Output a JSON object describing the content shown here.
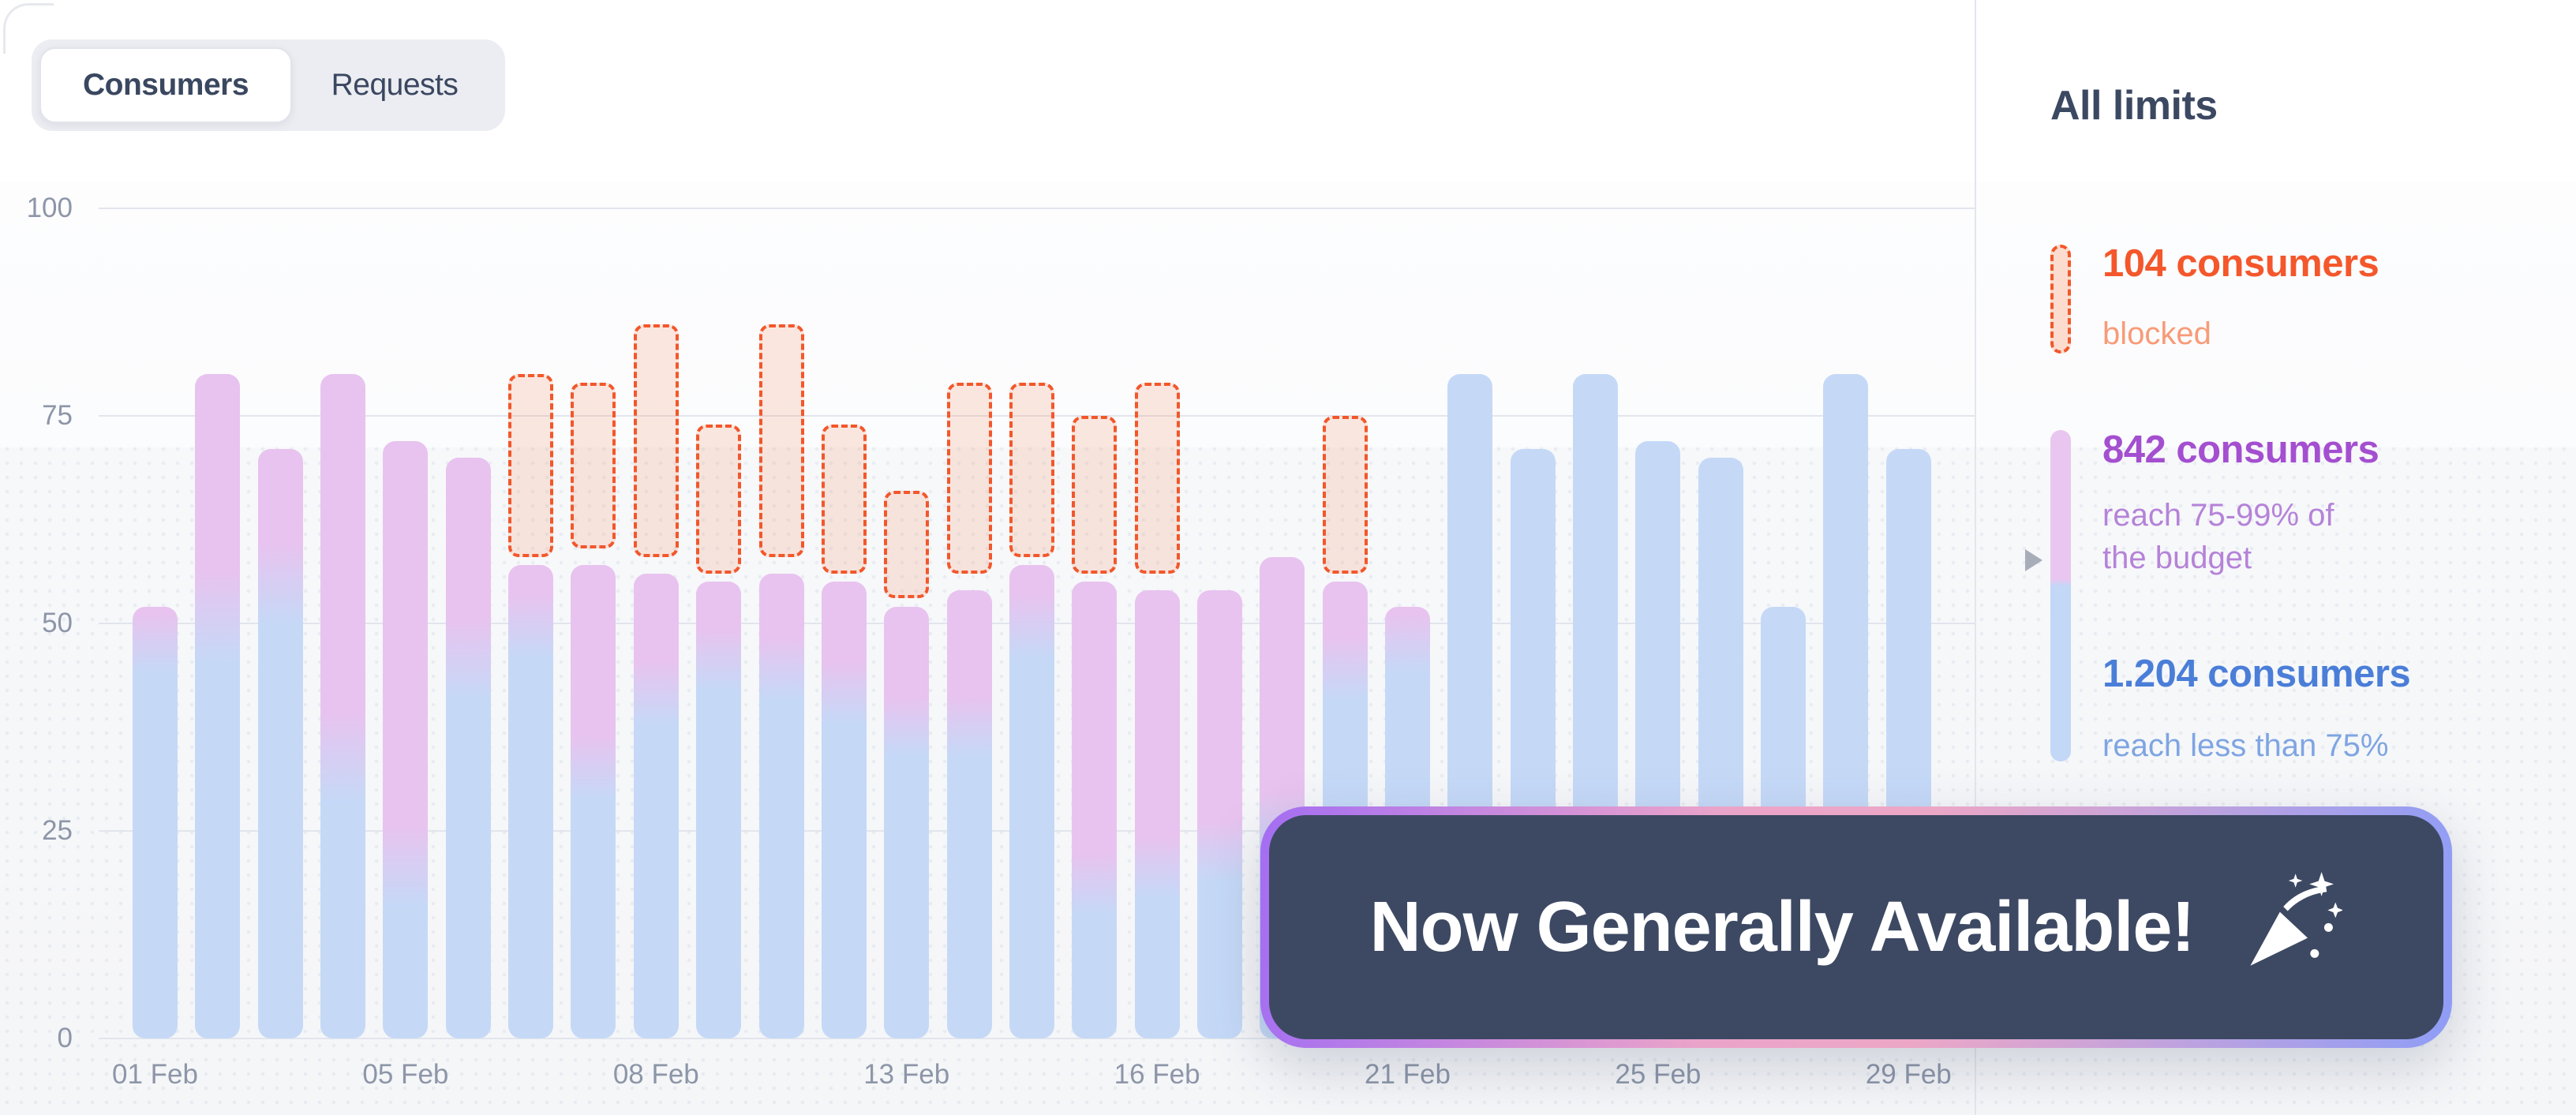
{
  "tabs": {
    "items": [
      {
        "label": "Consumers",
        "active": true
      },
      {
        "label": "Requests",
        "active": false
      }
    ]
  },
  "chart_data": {
    "type": "bar",
    "stacked": true,
    "title": "",
    "xlabel": "",
    "ylabel": "",
    "ylim": [
      0,
      100
    ],
    "y_ticks": [
      0,
      25,
      50,
      75,
      100
    ],
    "grid": true,
    "x_tick_labels": [
      "01 Feb",
      "05 Feb",
      "08 Feb",
      "13 Feb",
      "16 Feb",
      "21 Feb",
      "25 Feb",
      "29 Feb"
    ],
    "x_tick_bar_indices": [
      0,
      4,
      8,
      12,
      16,
      20,
      24,
      28
    ],
    "series_legend": [
      {
        "name": "consumers blocked",
        "style": "dashed-outline",
        "color": "#f2572b"
      },
      {
        "name": "consumers reaching 75-99% of the budget",
        "style": "solid",
        "color": "#e8c3ef"
      },
      {
        "name": "consumers reaching less than 75%",
        "style": "solid",
        "color": "#c5d9f7"
      }
    ],
    "bars": [
      {
        "under75": 47,
        "total": 52,
        "blocked": null
      },
      {
        "under75": 50,
        "total": 80,
        "blocked": null
      },
      {
        "under75": 54,
        "total": 71,
        "blocked": null
      },
      {
        "under75": 33,
        "total": 80,
        "blocked": null
      },
      {
        "under75": 20,
        "total": 72,
        "blocked": null
      },
      {
        "under75": 45,
        "total": 70,
        "blocked": null
      },
      {
        "under75": 49,
        "total": 57,
        "blocked": [
          58,
          80
        ]
      },
      {
        "under75": 32,
        "total": 57,
        "blocked": [
          59,
          79
        ]
      },
      {
        "under75": 41,
        "total": 56,
        "blocked": [
          58,
          86
        ]
      },
      {
        "under75": 45,
        "total": 55,
        "blocked": [
          56,
          74
        ]
      },
      {
        "under75": 44,
        "total": 56,
        "blocked": [
          58,
          86
        ]
      },
      {
        "under75": 41,
        "total": 55,
        "blocked": [
          56,
          74
        ]
      },
      {
        "under75": 37,
        "total": 52,
        "blocked": [
          53,
          66
        ]
      },
      {
        "under75": 37,
        "total": 54,
        "blocked": [
          56,
          79
        ]
      },
      {
        "under75": 49,
        "total": 57,
        "blocked": [
          58,
          79
        ]
      },
      {
        "under75": 18,
        "total": 55,
        "blocked": [
          56,
          75
        ]
      },
      {
        "under75": 20,
        "total": 54,
        "blocked": [
          56,
          79
        ]
      },
      {
        "under75": 22,
        "total": 54,
        "blocked": null
      },
      {
        "under75": 25,
        "total": 58,
        "blocked": null
      },
      {
        "under75": 44,
        "total": 55,
        "blocked": [
          56,
          75
        ]
      },
      {
        "under75": 47,
        "total": 52,
        "blocked": null
      },
      {
        "under75": 80,
        "total": 80,
        "blocked": null
      },
      {
        "under75": 71,
        "total": 71,
        "blocked": null
      },
      {
        "under75": 80,
        "total": 80,
        "blocked": null
      },
      {
        "under75": 72,
        "total": 72,
        "blocked": null
      },
      {
        "under75": 70,
        "total": 70,
        "blocked": null
      },
      {
        "under75": 52,
        "total": 52,
        "blocked": null
      },
      {
        "under75": 80,
        "total": 80,
        "blocked": null
      },
      {
        "under75": 71,
        "total": 71,
        "blocked": null
      }
    ]
  },
  "legend": {
    "title": "All limits",
    "items": [
      {
        "value": "104 consumers",
        "desc": "blocked",
        "color": "#f4572b"
      },
      {
        "value": "842 consumers",
        "desc": "reach 75-99% of\nthe budget",
        "color": "#a44fd0"
      },
      {
        "value": "1.204 consumers",
        "desc": "reach less than 75%",
        "color": "#4a7ed8"
      }
    ]
  },
  "banner": {
    "text": "Now Generally Available!",
    "icon": "party-popper-icon"
  },
  "colors": {
    "bar_blue": "#c5d9f7",
    "bar_purple": "#e8c3ef",
    "blocked_border": "#f2572b",
    "banner_bg": "#3d4963",
    "axis_text": "#8d96a8",
    "heading_text": "#3b4861"
  }
}
